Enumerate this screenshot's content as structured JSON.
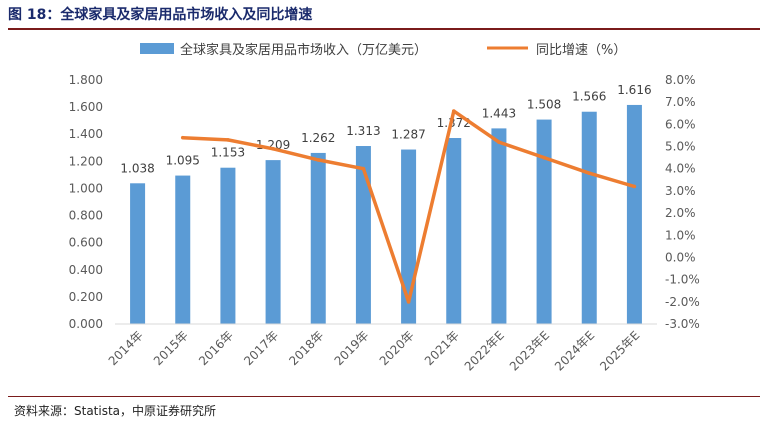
{
  "figure_title": "图 18：全球家具及家居用品市场收入及同比增速",
  "source_note": "资料来源：Statista，中原证券研究所",
  "colors": {
    "bar": "#5B9BD5",
    "line": "#ED7D31",
    "title": "#1a2a6c",
    "rule": "#7a1b1b"
  },
  "chart_data": {
    "type": "bar",
    "categories": [
      "2014年",
      "2015年",
      "2016年",
      "2017年",
      "2018年",
      "2019年",
      "2020年",
      "2021年",
      "2022年E",
      "2023年E",
      "2024年E",
      "2025年E"
    ],
    "series": [
      {
        "name": "全球家具及家居用品市场收入（万亿美元）",
        "type": "bar",
        "axis": "left",
        "values": [
          1.038,
          1.095,
          1.153,
          1.209,
          1.262,
          1.313,
          1.287,
          1.372,
          1.443,
          1.508,
          1.566,
          1.616
        ],
        "labels": [
          "1.038",
          "1.095",
          "1.153",
          "1.209",
          "1.262",
          "1.313",
          "1.287",
          "1.372",
          "1.443",
          "1.508",
          "1.566",
          "1.616"
        ]
      },
      {
        "name": "同比增速（%）",
        "type": "line",
        "axis": "right",
        "values": [
          null,
          5.4,
          5.3,
          4.9,
          4.4,
          4.0,
          -2.0,
          6.6,
          5.2,
          4.5,
          3.8,
          3.2
        ]
      }
    ],
    "y_left": {
      "lim": [
        0,
        1.8
      ],
      "ticks": [
        "0.000",
        "0.200",
        "0.400",
        "0.600",
        "0.800",
        "1.000",
        "1.200",
        "1.400",
        "1.600",
        "1.800"
      ]
    },
    "y_right": {
      "lim": [
        -3,
        8
      ],
      "ticks": [
        "-3.0%",
        "-2.0%",
        "-1.0%",
        "0.0%",
        "1.0%",
        "2.0%",
        "3.0%",
        "4.0%",
        "5.0%",
        "6.0%",
        "7.0%",
        "8.0%"
      ]
    },
    "grid": false,
    "legend_position": "top"
  }
}
